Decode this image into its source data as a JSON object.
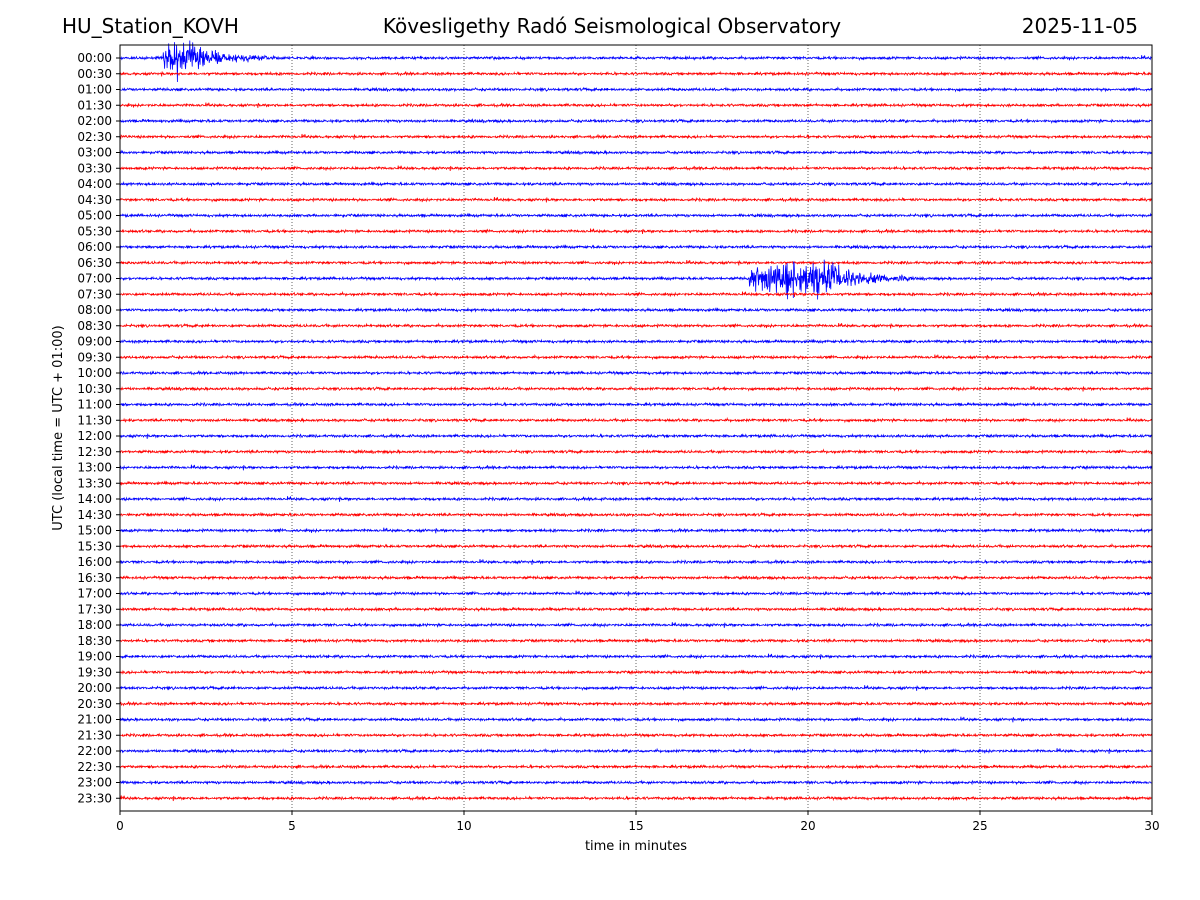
{
  "header": {
    "station": "HU_Station_KOVH",
    "title": "Kövesligethy Radó Seismological Observatory",
    "date": "2025-11-05"
  },
  "chart_data": {
    "type": "line",
    "xlabel": "time in minutes",
    "ylabel": "UTC (local time = UTC + 01:00)",
    "xlim": [
      0,
      30
    ],
    "xticks": [
      0,
      5,
      10,
      15,
      20,
      25,
      30
    ],
    "grid": "vertical dotted lines at x ticks",
    "row_labels": [
      "00:00",
      "00:30",
      "01:00",
      "01:30",
      "02:00",
      "02:30",
      "03:00",
      "03:30",
      "04:00",
      "04:30",
      "05:00",
      "05:30",
      "06:00",
      "06:30",
      "07:00",
      "07:30",
      "08:00",
      "08:30",
      "09:00",
      "09:30",
      "10:00",
      "10:30",
      "11:00",
      "11:30",
      "12:00",
      "12:30",
      "13:00",
      "13:30",
      "14:00",
      "14:30",
      "15:00",
      "15:30",
      "16:00",
      "16:30",
      "17:00",
      "17:30",
      "18:00",
      "18:30",
      "19:00",
      "19:30",
      "20:00",
      "20:30",
      "21:00",
      "21:30",
      "22:00",
      "22:30",
      "23:00",
      "23:30"
    ],
    "trace_colors": [
      "#0000ff",
      "#ff0000"
    ],
    "events": [
      {
        "row": "00:00",
        "start_min": 1.25,
        "peak_min": 1.7,
        "end_min": 4.5,
        "relative_amplitude": 1.0
      },
      {
        "row": "07:00",
        "start_min": 18.3,
        "peak_min": 20.3,
        "end_min": 23.0,
        "relative_amplitude": 1.2
      }
    ]
  }
}
